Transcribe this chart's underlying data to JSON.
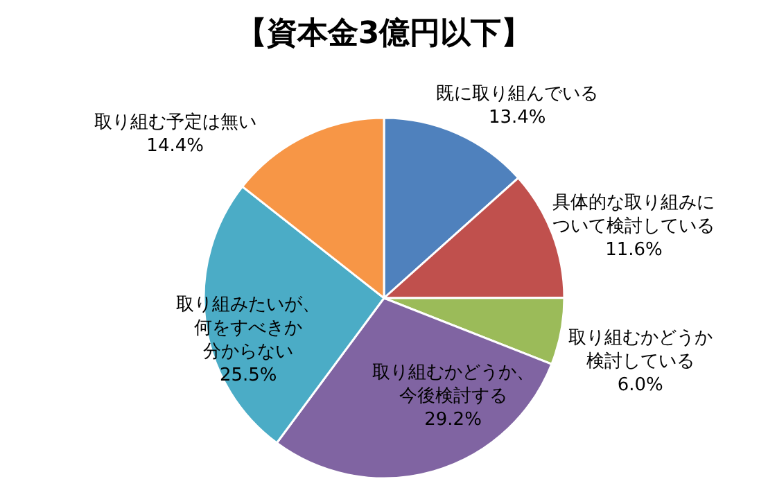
{
  "chart_data": {
    "type": "pie",
    "title": "【資本金3億円以下】",
    "categories": [
      "既に取り組んでいる",
      "具体的な取り組みについて検討している",
      "取り組むかどうか検討している",
      "取り組むかどうか、今後検討する",
      "取り組みたいが、何をすべきか分からない",
      "取り組む予定は無い"
    ],
    "values": [
      13.4,
      11.6,
      6.0,
      29.2,
      25.5,
      14.4
    ],
    "value_labels": [
      "13.4%",
      "11.6%",
      "6.0%",
      "29.2%",
      "25.5%",
      "14.4%"
    ],
    "colors": [
      "#4f81bd",
      "#c0504d",
      "#9bbb59",
      "#8064a2",
      "#4bacc6",
      "#f79646"
    ]
  }
}
